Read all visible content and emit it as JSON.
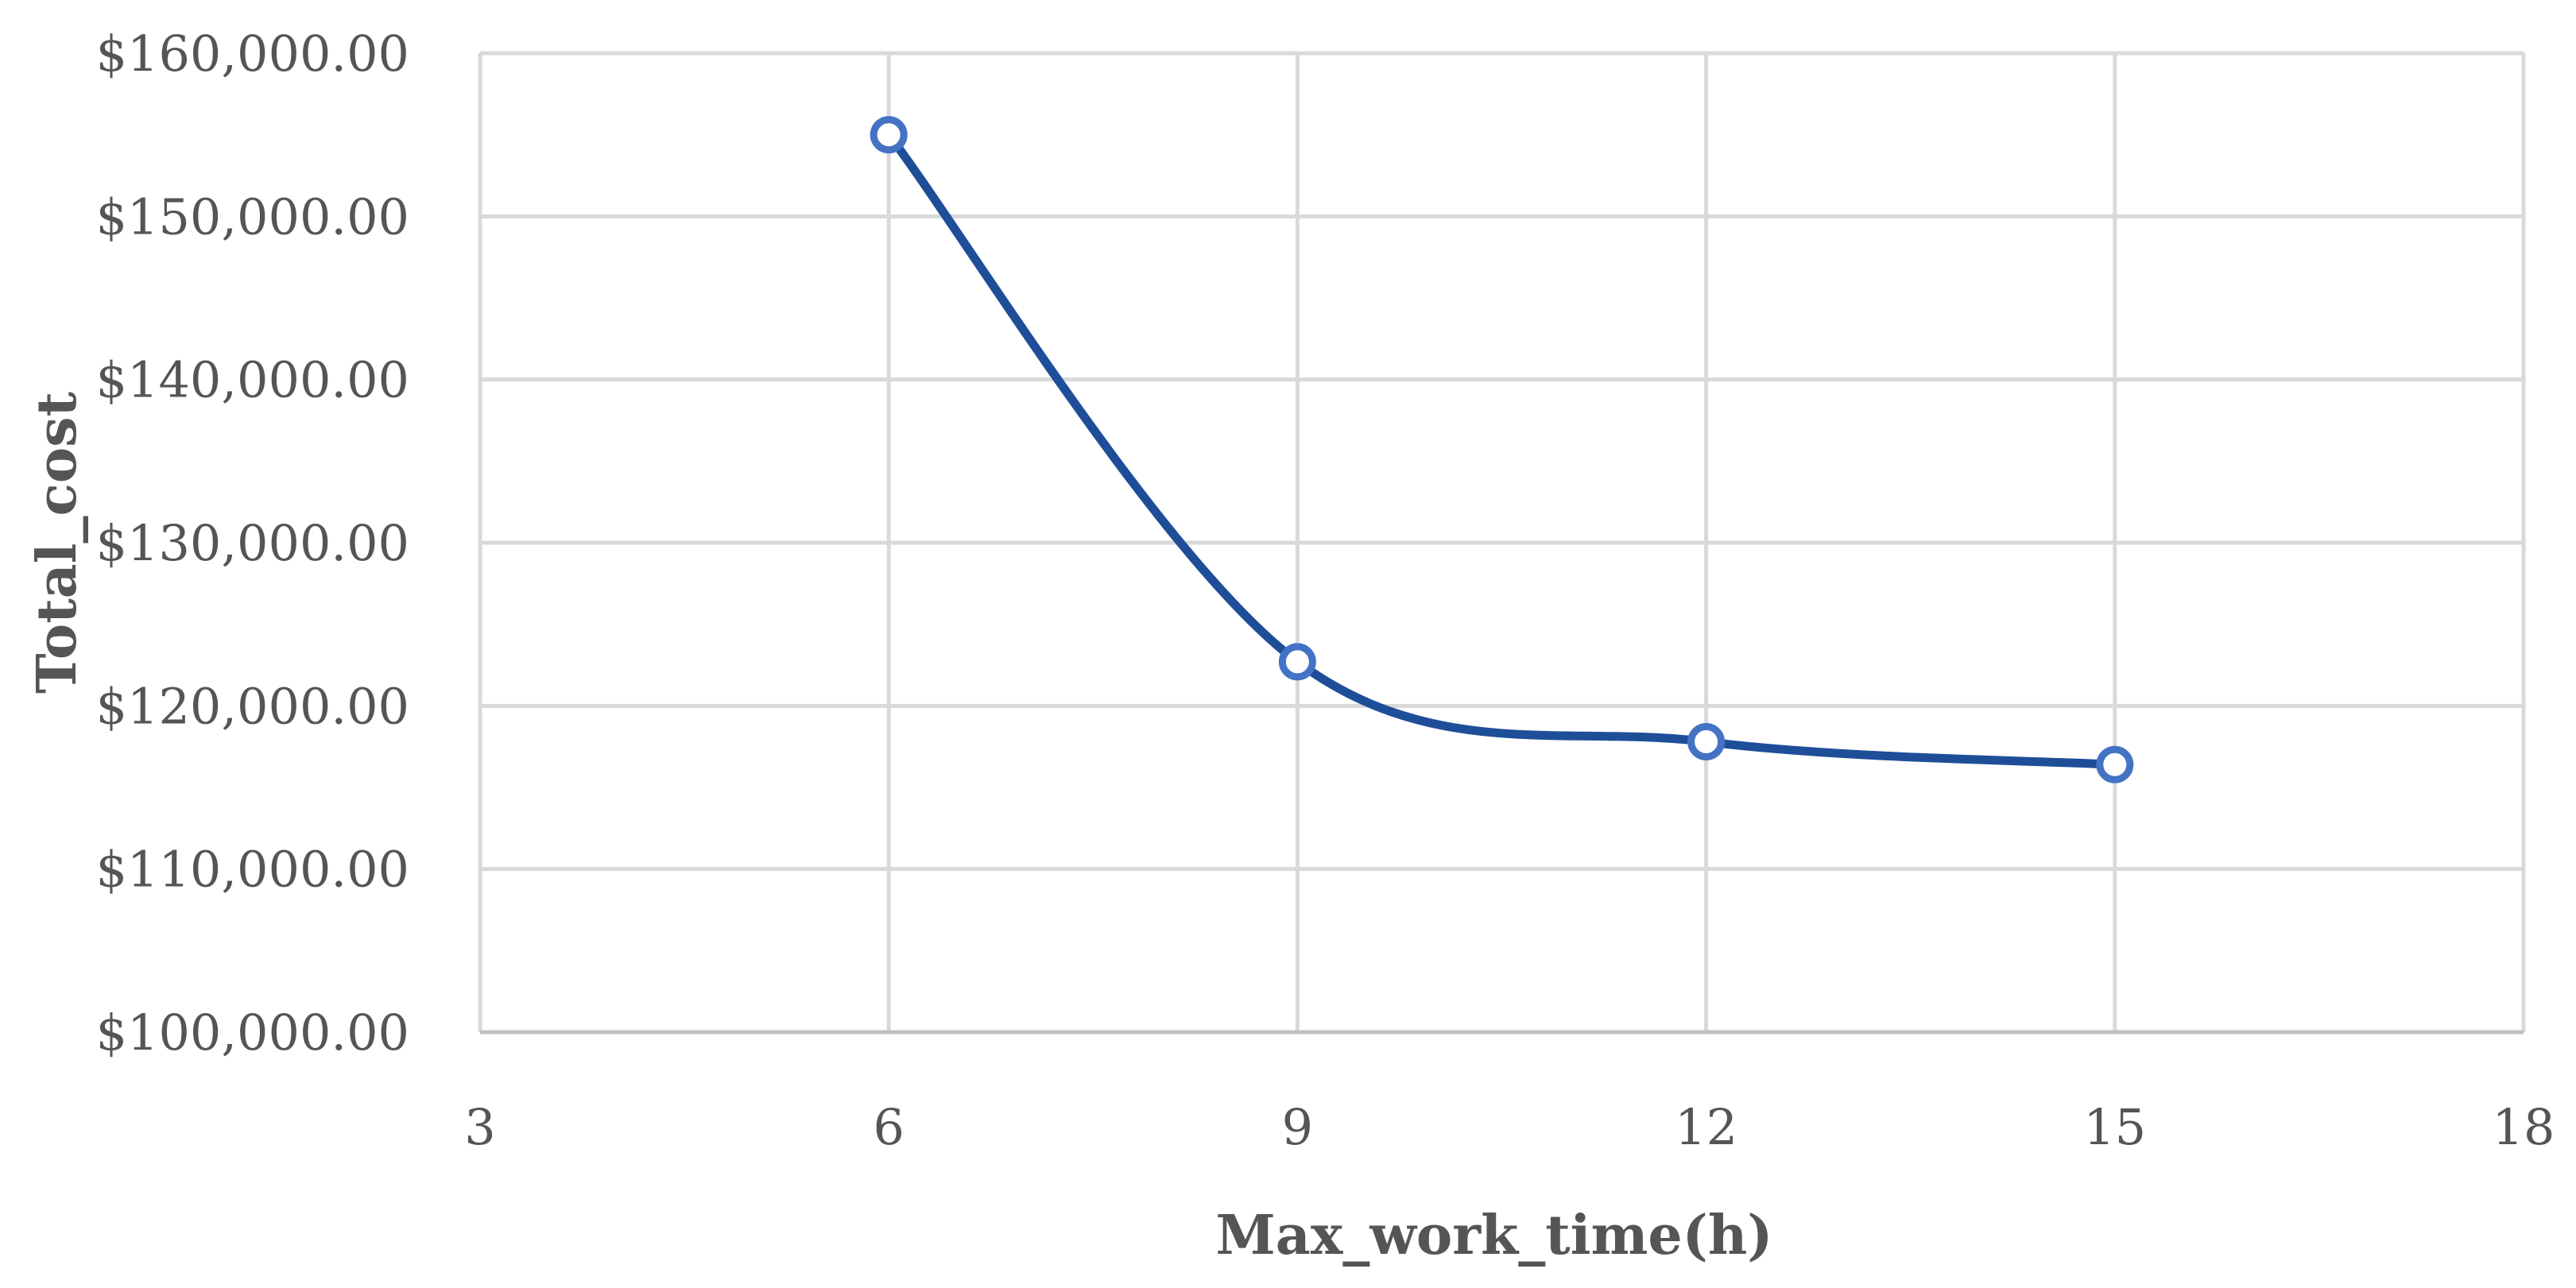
{
  "chart_data": {
    "type": "line",
    "title": "",
    "xlabel": "Max_work_time(h)",
    "ylabel": "Total_cost",
    "x": [
      6,
      9,
      12,
      15
    ],
    "series": [
      {
        "values": [
          155000,
          122700,
          117800,
          116400
        ],
        "color": "#1f4e99",
        "marker_color": "#4472c4",
        "smooth": true
      }
    ],
    "xlim": [
      3,
      18
    ],
    "ylim": [
      100000,
      160000
    ],
    "x_ticks": [
      "3",
      "6",
      "9",
      "12",
      "15",
      "18"
    ],
    "x_tick_values": [
      3,
      6,
      9,
      12,
      15,
      18
    ],
    "y_ticks": [
      "$100,000.00",
      "$110,000.00",
      "$120,000.00",
      "$130,000.00",
      "$140,000.00",
      "$150,000.00",
      "$160,000.00"
    ],
    "y_tick_values": [
      100000,
      110000,
      120000,
      130000,
      140000,
      150000,
      160000
    ],
    "grid": true,
    "legend": "none"
  }
}
